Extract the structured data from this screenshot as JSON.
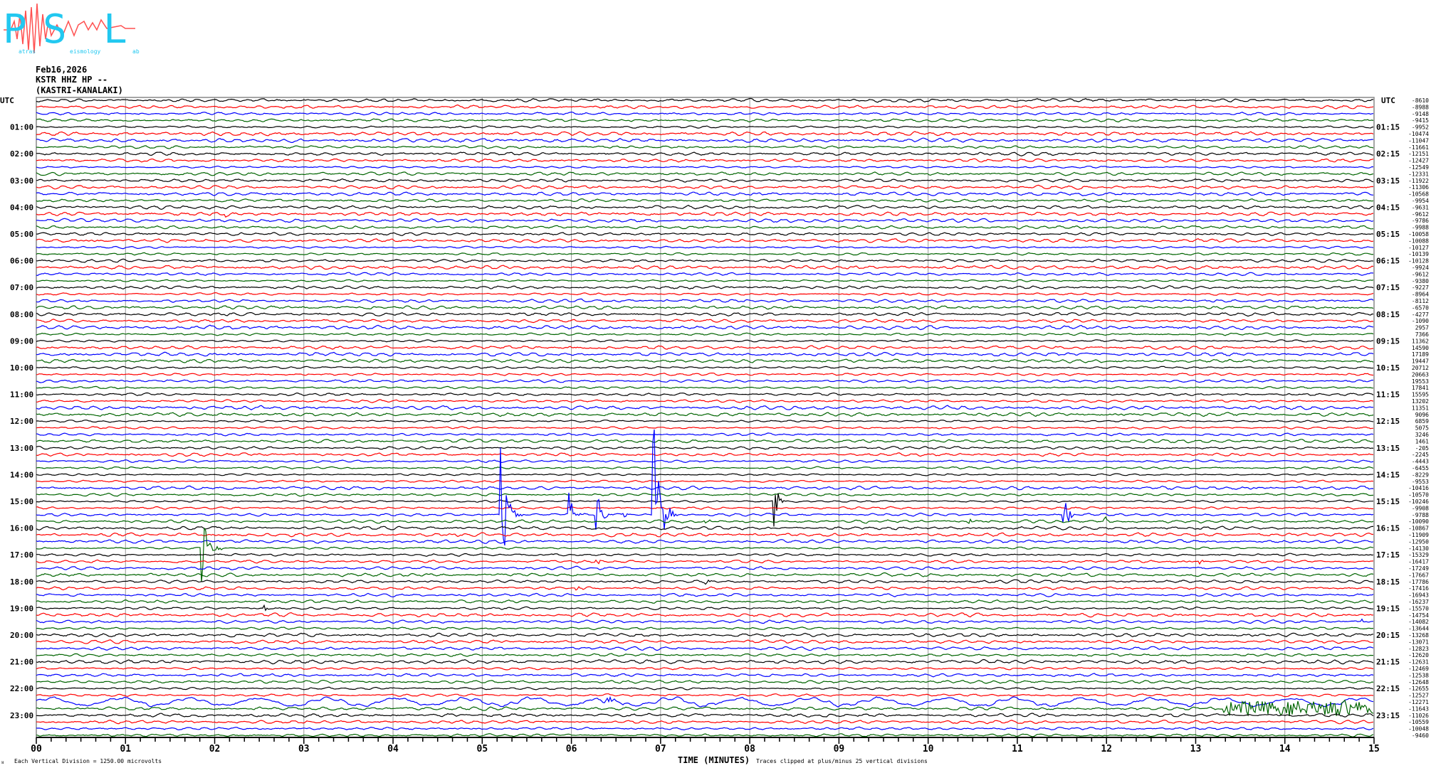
{
  "logo": {
    "letters": [
      "P",
      "S",
      "L"
    ],
    "subtext": [
      "atras",
      "eismology",
      "ab"
    ],
    "full_name": "Patras Seismology Lab",
    "letter_color": "#22c8f0",
    "wave_color": "#ff4040"
  },
  "header": {
    "date": "Feb16,2026",
    "channel": "KSTR HHZ HP --",
    "station": "(KASTRI-KANALAKI)"
  },
  "chart_data": {
    "type": "line",
    "subtype": "helicorder",
    "xlabel": "TIME (MINUTES)",
    "xlim": [
      0,
      15
    ],
    "x_ticks": [
      "00",
      "01",
      "02",
      "03",
      "04",
      "05",
      "06",
      "07",
      "08",
      "09",
      "10",
      "11",
      "12",
      "13",
      "14",
      "15"
    ],
    "left_axis_title": "UTC",
    "right_axis_title": "UTC",
    "left_labels": [
      "01:00",
      "02:00",
      "03:00",
      "04:00",
      "05:00",
      "06:00",
      "07:00",
      "08:00",
      "09:00",
      "10:00",
      "11:00",
      "12:00",
      "13:00",
      "14:00",
      "15:00",
      "16:00",
      "17:00",
      "18:00",
      "19:00",
      "20:00",
      "21:00",
      "22:00",
      "23:00"
    ],
    "right_labels": [
      "01:15",
      "02:15",
      "03:15",
      "04:15",
      "05:15",
      "06:15",
      "07:15",
      "08:15",
      "09:15",
      "10:15",
      "11:15",
      "12:15",
      "13:15",
      "14:15",
      "15:15",
      "16:15",
      "17:15",
      "18:15",
      "19:15",
      "20:15",
      "21:15",
      "22:15",
      "23:15"
    ],
    "trace_count": 96,
    "trace_minutes": 15,
    "trace_colors": [
      "#000000",
      "#ff0000",
      "#0000ff",
      "#006400"
    ],
    "grid": true,
    "trace_offsets": [
      -8610,
      -8988,
      -9148,
      -9415,
      -9952,
      -10474,
      -11047,
      -11661,
      -12151,
      -12427,
      -12549,
      -12331,
      -11922,
      -11306,
      -10568,
      -9954,
      -9631,
      -9612,
      -9786,
      -9988,
      -10058,
      -10088,
      -10127,
      -10139,
      -10128,
      -9924,
      -9612,
      -9380,
      -9227,
      -8964,
      -8112,
      -6570,
      -4277,
      -1090,
      2957,
      7366,
      11362,
      14590,
      17189,
      19447,
      20712,
      20663,
      19553,
      17841,
      15595,
      13202,
      11351,
      9096,
      6859,
      5075,
      3246,
      1461,
      -205,
      -2245,
      -4443,
      -6455,
      -8229,
      -9553,
      -10416,
      -10570,
      -10246,
      -9908,
      -9788,
      -10090,
      -10867,
      -11909,
      -12950,
      -14130,
      -15329,
      -16417,
      -17249,
      -17667,
      -17786,
      -17416,
      -16943,
      -16237,
      -15570,
      -14754,
      -14082,
      -13644,
      -13268,
      -13071,
      -12823,
      -12620,
      -12631,
      -12469,
      -12538,
      -12648,
      -12655,
      -12527,
      -12271,
      -11643,
      -11026,
      -10559,
      -10048,
      -9460
    ],
    "events": [
      {
        "trace": 17,
        "minute": 2.1,
        "amp": 6,
        "dur": 0.4
      },
      {
        "trace": 67,
        "minute": 1.84,
        "amp": 90,
        "dur": 0.25
      },
      {
        "trace": 62,
        "minute": 5.2,
        "amp": 120,
        "dur": 0.25
      },
      {
        "trace": 62,
        "minute": 5.96,
        "amp": 45,
        "dur": 0.2
      },
      {
        "trace": 62,
        "minute": 6.27,
        "amp": 50,
        "dur": 0.2
      },
      {
        "trace": 62,
        "minute": 6.55,
        "amp": 15,
        "dur": 0.15
      },
      {
        "trace": 62,
        "minute": 6.9,
        "amp": 180,
        "dur": 0.3
      },
      {
        "trace": 63,
        "minute": 7.5,
        "amp": 14,
        "dur": 0.15
      },
      {
        "trace": 60,
        "minute": 8.26,
        "amp": 60,
        "dur": 0.15
      },
      {
        "trace": 63,
        "minute": 10.44,
        "amp": 10,
        "dur": 0.1
      },
      {
        "trace": 62,
        "minute": 11.51,
        "amp": 40,
        "dur": 0.2
      },
      {
        "trace": 63,
        "minute": 11.97,
        "amp": 12,
        "dur": 0.15
      },
      {
        "trace": 73,
        "minute": 6.04,
        "amp": 6,
        "dur": 0.25
      },
      {
        "trace": 69,
        "minute": 6.27,
        "amp": 16,
        "dur": 0.1
      },
      {
        "trace": 69,
        "minute": 13.04,
        "amp": 6,
        "dur": 0.1
      },
      {
        "trace": 76,
        "minute": 2.54,
        "amp": 8,
        "dur": 0.1
      },
      {
        "trace": 72,
        "minute": 7.5,
        "amp": 5,
        "dur": 0.2
      },
      {
        "trace": 90,
        "minute": 6.3,
        "amp": 18,
        "dur": 0.3
      },
      {
        "trace": 91,
        "minute": 13.3,
        "amp": 10,
        "dur": 1.7
      },
      {
        "trace": 78,
        "minute": 14.85,
        "amp": 8,
        "dur": 0.1
      }
    ]
  },
  "footer": {
    "scale_note": "Each Vertical Division = 1250.00 microvolts",
    "clip_note": "Traces clipped at plus/minus 25 vertical divisions",
    "corner_mark": "ᴚ"
  }
}
